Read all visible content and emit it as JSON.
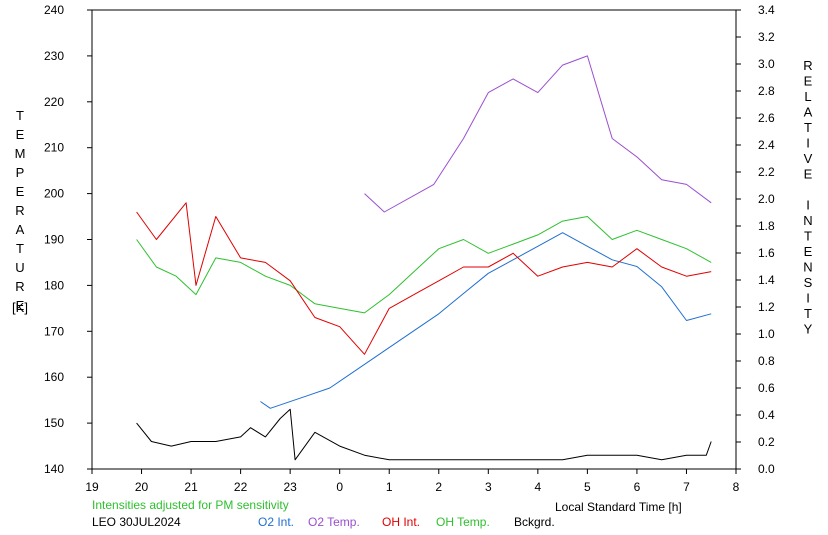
{
  "chart_data": {
    "type": "line",
    "y_left_label": "TEMPERATURE",
    "y_left_unit": "[K]",
    "y_right_label": "RELATIVE INTENSITY",
    "x_label": "Local Standard Time [h]",
    "x_tick_labels": [
      "19",
      "20",
      "21",
      "22",
      "23",
      "0",
      "1",
      "2",
      "3",
      "4",
      "5",
      "6",
      "7",
      "8"
    ],
    "x_range": [
      19,
      32
    ],
    "y_left_range": [
      140,
      240
    ],
    "y_left_ticks": [
      140,
      150,
      160,
      170,
      180,
      190,
      200,
      210,
      220,
      230,
      240
    ],
    "y_right_range": [
      0.0,
      3.4
    ],
    "y_right_ticks": [
      "0.0",
      "0.2",
      "0.4",
      "0.6",
      "0.8",
      "1.0",
      "1.2",
      "1.4",
      "1.6",
      "1.8",
      "2.0",
      "2.2",
      "2.4",
      "2.6",
      "2.8",
      "3.0",
      "3.2",
      "3.4"
    ],
    "grid": false,
    "note": "Intensities adjusted for PM sensitivity",
    "station": "LEO 30JUL2024",
    "series": [
      {
        "name": "O2 Int.",
        "color": "#1f6fd1",
        "axis": "right",
        "x": [
          22.4,
          22.6,
          23.4,
          23.8,
          24.8,
          26.0,
          26.5,
          27.0,
          27.5,
          28.0,
          28.5,
          29.0,
          29.5,
          30.0,
          30.5,
          31.0,
          31.5
        ],
        "y": [
          0.5,
          0.45,
          0.55,
          0.6,
          0.85,
          1.15,
          1.3,
          1.45,
          1.55,
          1.65,
          1.75,
          1.65,
          1.55,
          1.5,
          1.35,
          1.1,
          1.15
        ]
      },
      {
        "name": "O2 Temp.",
        "color": "#9a4fd0",
        "axis": "left",
        "x": [
          24.5,
          24.9,
          25.9,
          26.5,
          27.0,
          27.5,
          28.0,
          28.5,
          29.0,
          29.5,
          30.0,
          30.5,
          31.0,
          31.5
        ],
        "y": [
          200,
          196,
          202,
          212,
          222,
          225,
          222,
          228,
          230,
          212,
          208,
          203,
          202,
          198
        ]
      },
      {
        "name": "OH Int.",
        "color": "#e00000",
        "axis": "left",
        "x": [
          19.9,
          20.3,
          20.9,
          21.1,
          21.5,
          22.0,
          22.5,
          23.0,
          23.5,
          24.0,
          24.5,
          25.0,
          25.5,
          26.0,
          26.5,
          27.0,
          27.5,
          28.0,
          28.5,
          29.0,
          29.5,
          30.0,
          30.5,
          31.0,
          31.5
        ],
        "y": [
          196,
          190,
          198,
          180,
          195,
          186,
          185,
          181,
          173,
          171,
          165,
          175,
          178,
          181,
          184,
          184,
          187,
          182,
          184,
          185,
          184,
          188,
          184,
          182,
          183
        ]
      },
      {
        "name": "OH Temp.",
        "color": "#2fc02f",
        "axis": "left",
        "x": [
          19.9,
          20.3,
          20.7,
          21.1,
          21.5,
          22.0,
          22.5,
          23.0,
          23.5,
          24.0,
          24.5,
          25.0,
          25.5,
          26.0,
          26.5,
          27.0,
          27.5,
          28.0,
          28.5,
          29.0,
          29.5,
          30.0,
          30.5,
          31.0,
          31.5
        ],
        "y": [
          190,
          184,
          182,
          178,
          186,
          185,
          182,
          180,
          176,
          175,
          174,
          178,
          183,
          188,
          190,
          187,
          189,
          191,
          194,
          195,
          190,
          192,
          190,
          188,
          185
        ]
      },
      {
        "name": "Bckgrd.",
        "color": "#000000",
        "axis": "left",
        "x": [
          19.9,
          20.2,
          20.6,
          21.0,
          21.5,
          22.0,
          22.2,
          22.5,
          22.8,
          23.0,
          23.1,
          23.5,
          24.0,
          24.5,
          25.0,
          25.5,
          26.0,
          26.5,
          27.0,
          27.5,
          28.0,
          28.5,
          29.0,
          29.5,
          30.0,
          30.5,
          31.0,
          31.4,
          31.5
        ],
        "y": [
          150,
          146,
          145,
          146,
          146,
          147,
          149,
          147,
          151,
          153,
          142,
          148,
          145,
          143,
          142,
          142,
          142,
          142,
          142,
          142,
          142,
          142,
          143,
          143,
          143,
          142,
          143,
          143,
          146
        ]
      }
    ]
  }
}
